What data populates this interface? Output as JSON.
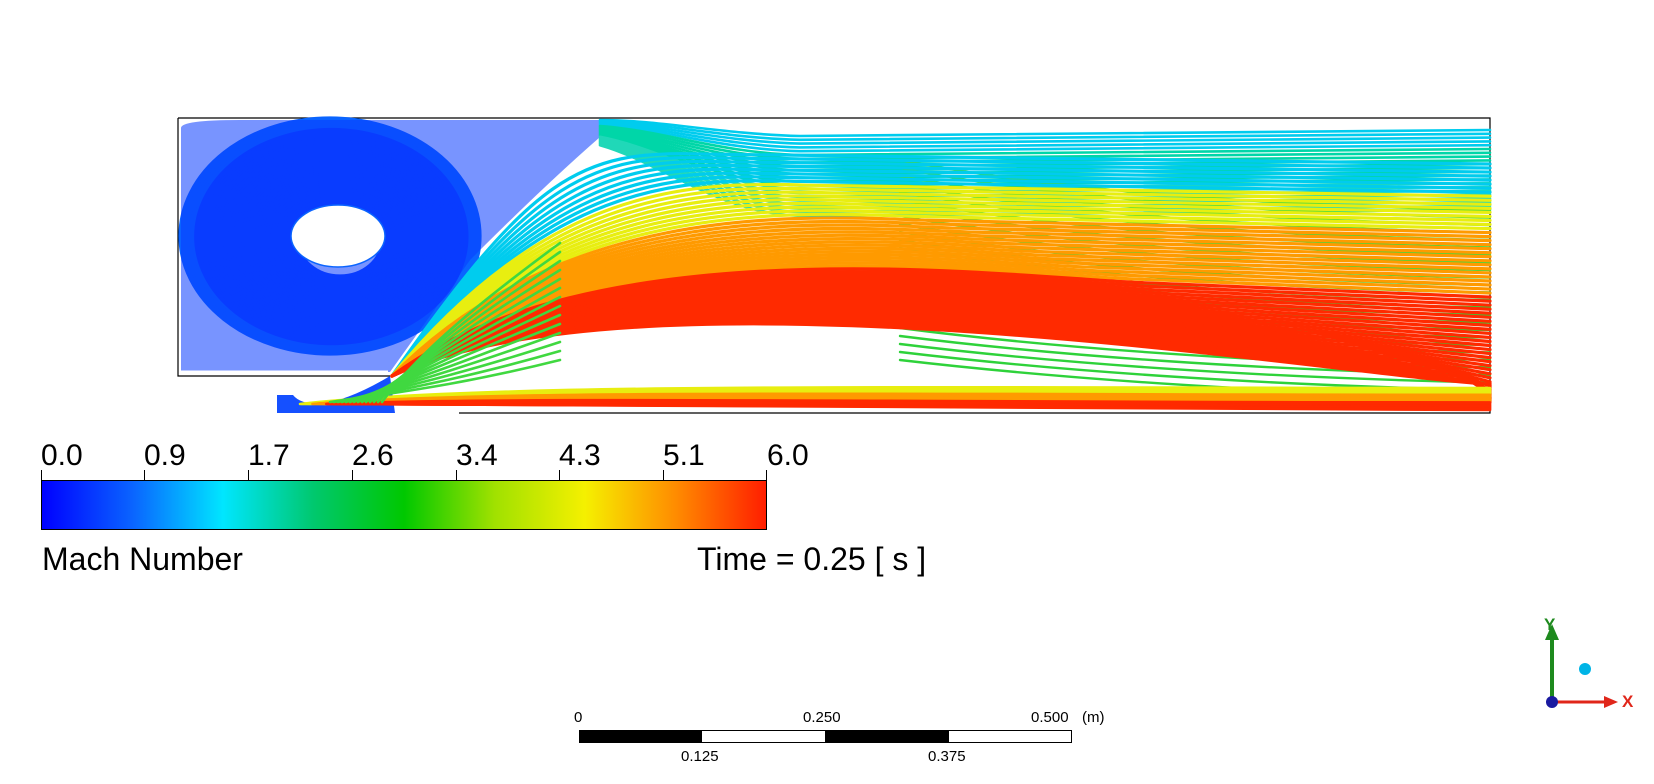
{
  "viewport": {
    "variable": "Mach Number",
    "time_label": "Time = 0.25 [ s ]"
  },
  "legend": {
    "ticks": [
      "0.0",
      "0.9",
      "1.7",
      "2.6",
      "3.4",
      "4.3",
      "5.1",
      "6.0"
    ],
    "colors": {
      "c0": "#0000ff",
      "c1": "#0a64ff",
      "c2": "#00e6ff",
      "c3": "#00c86e",
      "c4": "#00c800",
      "c5": "#a0e100",
      "c6": "#f5f000",
      "c7": "#ff8c00",
      "c8": "#ff1e00"
    }
  },
  "scale_bar": {
    "labels_top": [
      "0",
      "0.250",
      "0.500"
    ],
    "labels_bottom": [
      "0.125",
      "0.375"
    ],
    "unit": "(m)"
  },
  "axis_triad": {
    "x_label": "X",
    "y_label": "Y",
    "x_color": "#e0261a",
    "y_color": "#1e8a1e",
    "z_color": "#00b4e6"
  },
  "flow_colors": {
    "recirculation": "#0a3cff",
    "recirculation_edge": "#0a64ff",
    "shear": "#00ccee",
    "upper_stream": "#00d6a8",
    "mid_stream": "#40d840",
    "yellow": "#e8ee10",
    "orange": "#ff9a00",
    "red": "#ff2a00"
  }
}
